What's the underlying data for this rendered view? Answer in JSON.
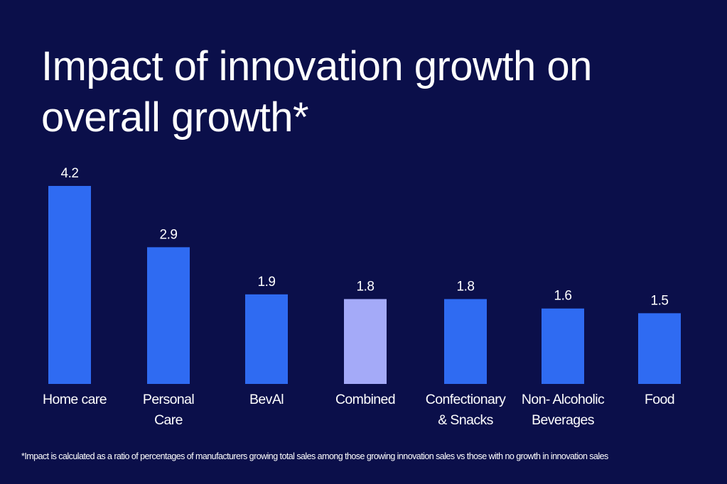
{
  "title": "Impact of innovation growth on overall growth*",
  "footnote": "*Impact is calculated as a ratio of percentages of manufacturers growing total sales among those growing innovation sales vs those with no growth in innovation sales",
  "colors": {
    "background": "#0b0f4a",
    "bar": "#2f6bf2",
    "highlight_bar": "#a4aaf8",
    "text": "#ffffff"
  },
  "chart_data": {
    "type": "bar",
    "title": "Impact of innovation growth on overall growth*",
    "xlabel": "",
    "ylabel": "",
    "categories": [
      "Home care",
      "Personal Care",
      "BevAl",
      "Combined",
      "Confectionary & Snacks",
      "Non- Alcoholic Beverages",
      "Food"
    ],
    "category_lines": [
      [
        "Home care"
      ],
      [
        "Personal",
        "Care"
      ],
      [
        "BevAl"
      ],
      [
        "Combined"
      ],
      [
        "Confectionary",
        "& Snacks"
      ],
      [
        "Non- Alcoholic",
        "Beverages"
      ],
      [
        "Food"
      ]
    ],
    "values": [
      4.2,
      2.9,
      1.9,
      1.8,
      1.8,
      1.6,
      1.5
    ],
    "value_labels": [
      "4.2",
      "2.9",
      "1.9",
      "1.8",
      "1.8",
      "1.6",
      "1.5"
    ],
    "highlighted": [
      "Combined"
    ],
    "ylim": [
      0,
      4.2
    ],
    "grid": false,
    "legend": "none"
  }
}
